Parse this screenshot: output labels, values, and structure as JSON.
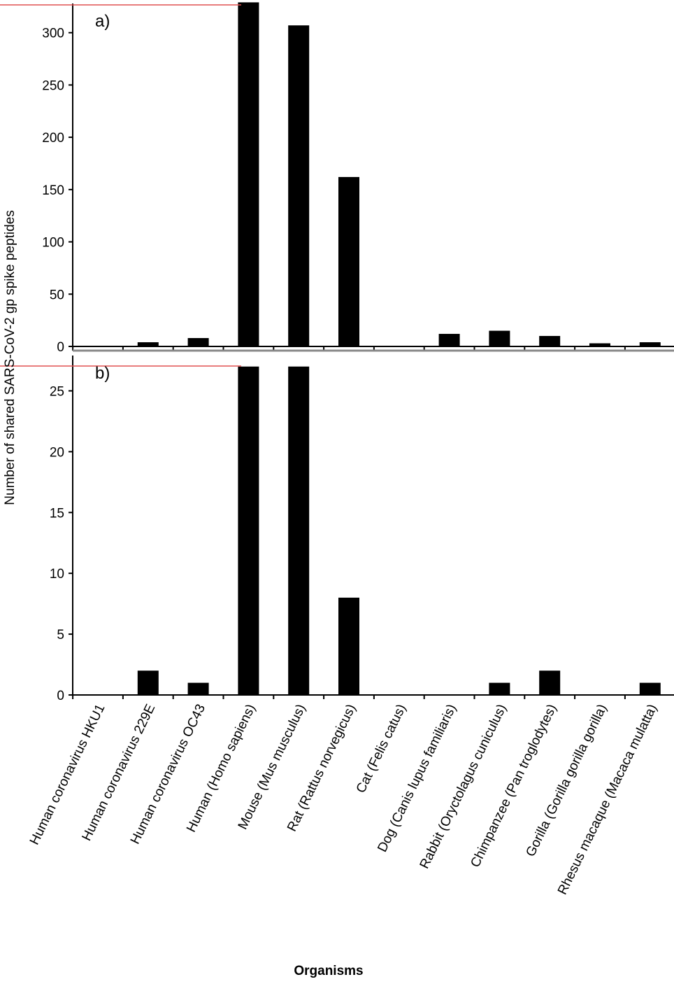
{
  "chart_data": [
    {
      "type": "bar",
      "panel_label": "a)",
      "categories": [
        "Human coronavirus HKU1",
        "Human coronavirus 229E",
        "Human coronavirus OC43",
        "Human (Homo sapiens)",
        "Mouse (Mus musculus)",
        "Rat  (Rattus norvegicus)",
        "Cat (Felis catus)",
        "Dog (Canis lupus familiaris)",
        "Rabbit (Oryctolagus cuniculus)",
        "Chimpanzee (Pan troglodytes)",
        "Gorilla (Gorilla gorilla gorilla)",
        "Rhesus macaque (Macaca mulatta)"
      ],
      "values": [
        0,
        4,
        8,
        329,
        307,
        162,
        0,
        12,
        15,
        10,
        3,
        4
      ],
      "ylim": [
        0,
        330
      ],
      "yticks": [
        0,
        50,
        100,
        150,
        200,
        250,
        300
      ],
      "bar_color": "#000000"
    },
    {
      "type": "bar",
      "panel_label": "b)",
      "categories": [
        "Human coronavirus HKU1",
        "Human coronavirus 229E",
        "Human coronavirus OC43",
        "Human (Homo sapiens)",
        "Mouse (Mus musculus)",
        "Rat  (Rattus norvegicus)",
        "Cat (Felis catus)",
        "Dog (Canis lupus familiaris)",
        "Rabbit (Oryctolagus cuniculus)",
        "Chimpanzee (Pan troglodytes)",
        "Gorilla (Gorilla gorilla gorilla)",
        "Rhesus macaque (Macaca mulatta)"
      ],
      "values": [
        0,
        2,
        1,
        27,
        27,
        8,
        0,
        0,
        1,
        2,
        0,
        1
      ],
      "ylim": [
        0,
        27
      ],
      "yticks": [
        0,
        5,
        10,
        15,
        20,
        25
      ],
      "bar_color": "#000000"
    }
  ],
  "ylabel": "Number of shared SARS-CoV-2 gp spike peptides",
  "xlabel": "Organisms",
  "colors": {
    "bars": "#000000",
    "axes": "#000000",
    "highlight_line": "#e05050"
  }
}
